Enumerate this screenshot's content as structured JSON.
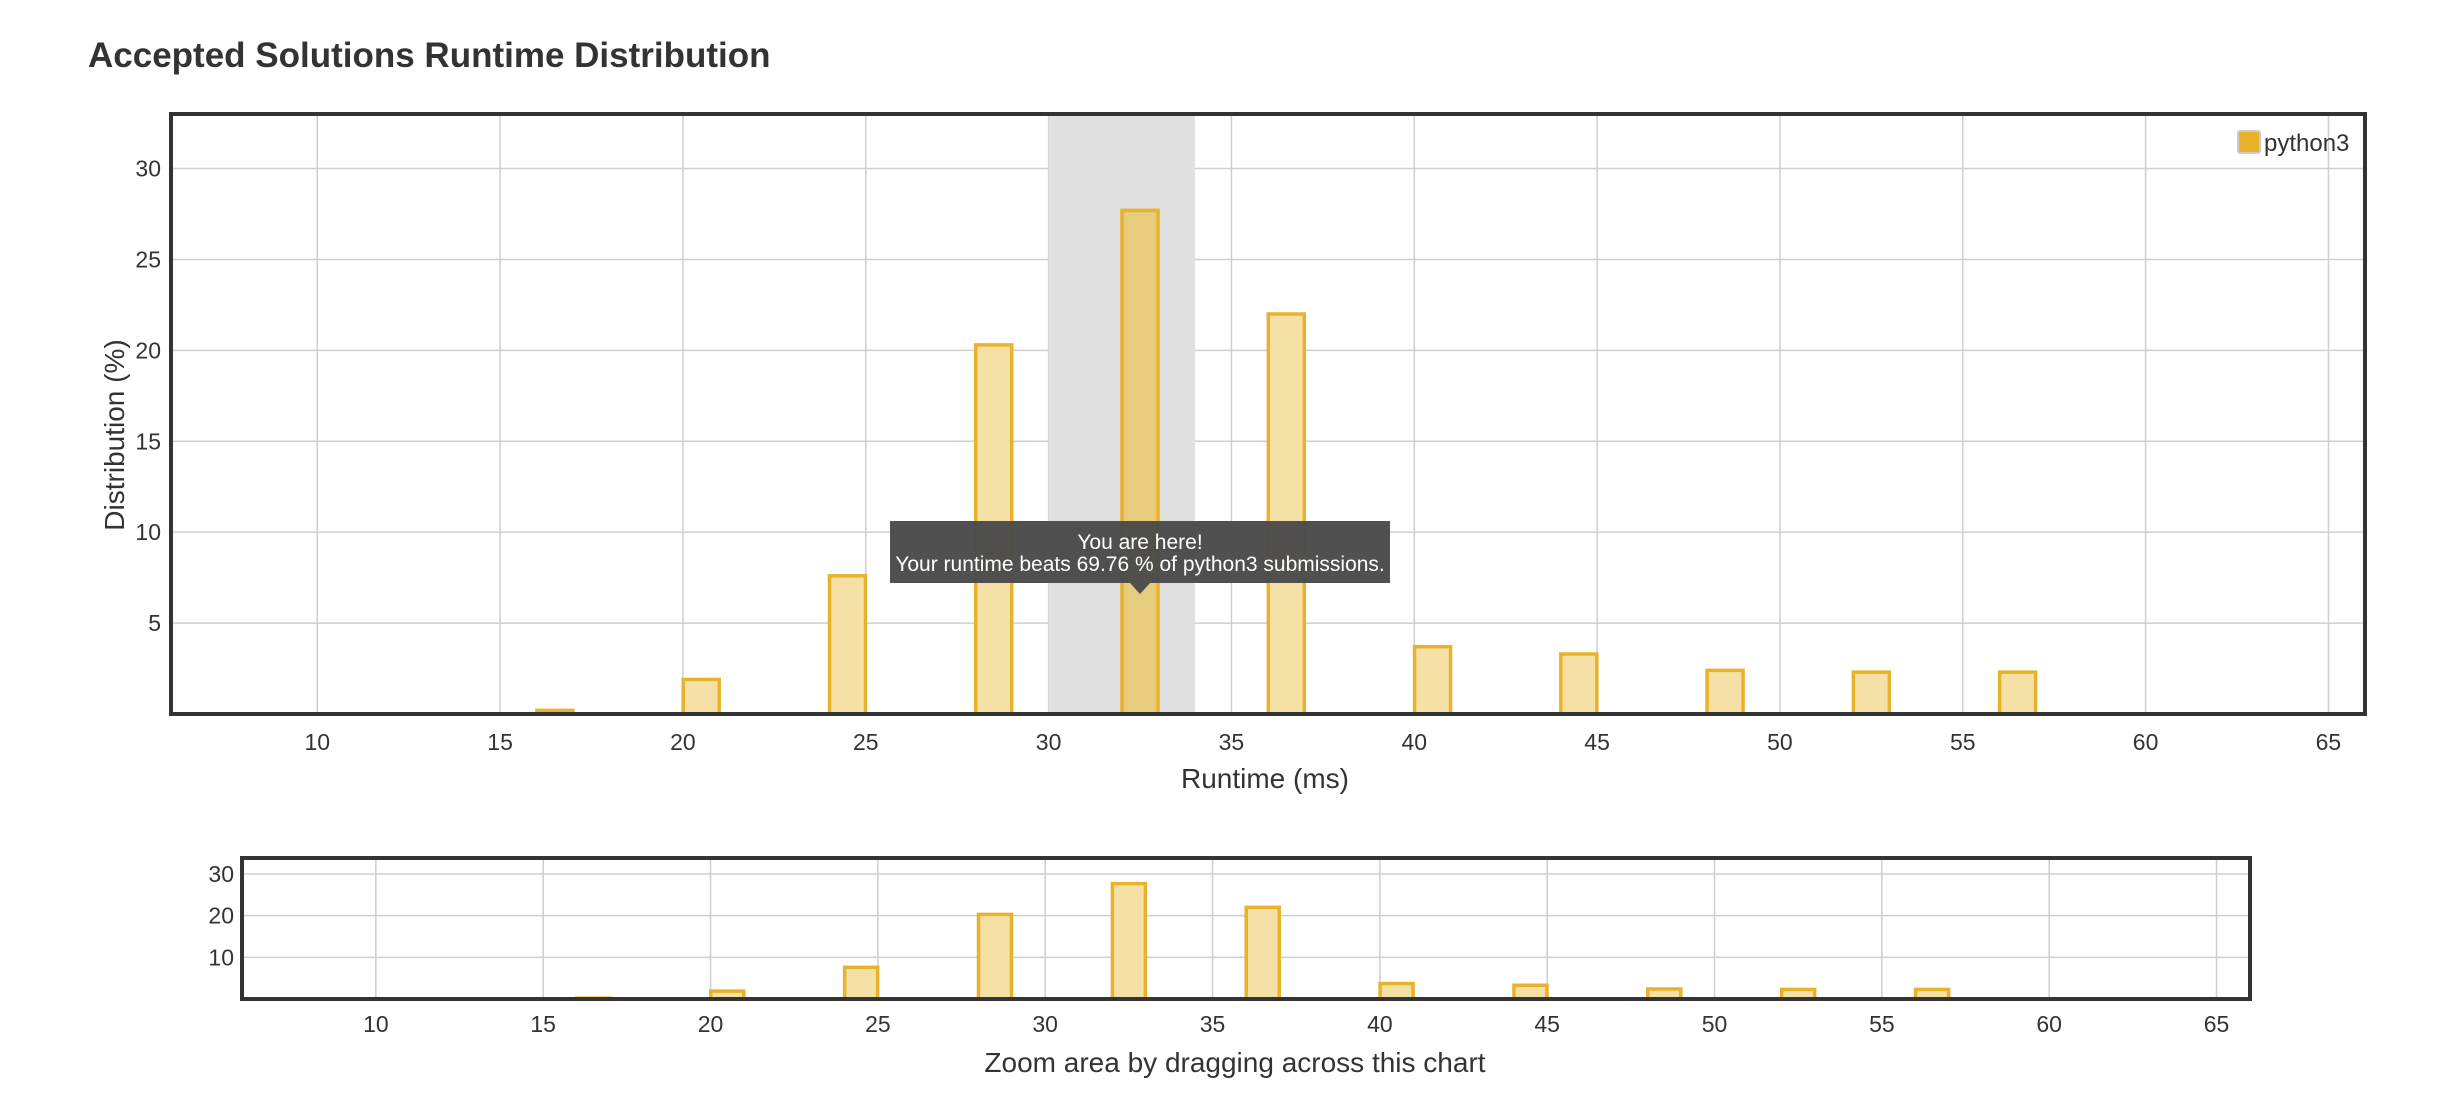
{
  "page": {
    "title": "Accepted Solutions Runtime Distribution"
  },
  "chart_data": {
    "type": "bar",
    "ylabel": "Distribution (%)",
    "xlabel": "Runtime (ms)",
    "xlim": [
      6,
      66
    ],
    "ylim": [
      0,
      33
    ],
    "x_ticks": [
      10,
      15,
      20,
      25,
      30,
      35,
      40,
      45,
      50,
      55,
      60,
      65
    ],
    "y_ticks": [
      5,
      10,
      15,
      20,
      25,
      30
    ],
    "grid": true,
    "legend_position": "top-right",
    "series": [
      {
        "name": "python3",
        "color": "#e8b32a",
        "fill": "#f5e1a6",
        "highlight_fill": "#e7cc7e",
        "x": [
          16.5,
          20.5,
          24.5,
          28.5,
          32.5,
          36.5,
          40.5,
          44.5,
          48.5,
          52.5,
          56.5
        ],
        "values": [
          0.2,
          1.9,
          7.6,
          20.3,
          27.7,
          22.0,
          3.7,
          3.3,
          2.4,
          2.3,
          2.3
        ]
      }
    ],
    "highlight_range": [
      30,
      34
    ],
    "highlight_x": 32.5,
    "tooltip": {
      "line1": "You are here!",
      "line2": "Your runtime beats 69.76 % of python3 submissions."
    },
    "navigator": {
      "y_ticks": [
        10,
        20,
        30
      ],
      "ylim": [
        0,
        30
      ],
      "caption": "Zoom area by dragging across this chart"
    }
  }
}
